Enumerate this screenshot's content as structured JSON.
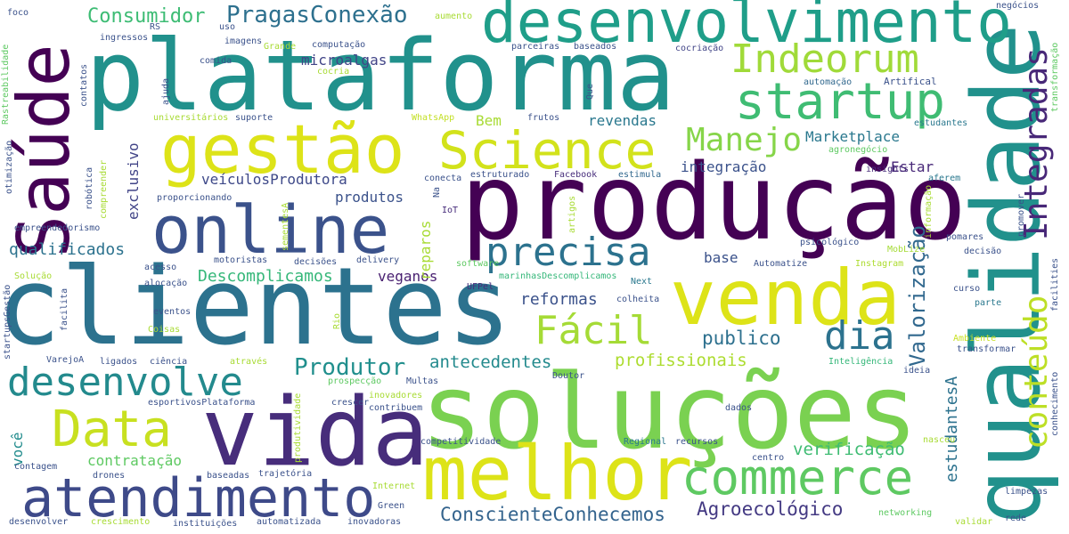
{
  "words": [
    {
      "text": "produção",
      "color": "#440154"
    },
    {
      "text": "soluções",
      "color": "#7ad151"
    },
    {
      "text": "plataforma",
      "color": "#21918c"
    },
    {
      "text": "clientes",
      "color": "#2c728e"
    },
    {
      "text": "qualidade",
      "color": "#21918c"
    },
    {
      "text": "vida",
      "color": "#472d7b"
    },
    {
      "text": "venda",
      "color": "#dde318"
    },
    {
      "text": "desenvolvimento",
      "color": "#1f9e89"
    },
    {
      "text": "online",
      "color": "#3b528b"
    },
    {
      "text": "Saúde",
      "color": "#440154"
    },
    {
      "text": "gestão",
      "color": "#dde318"
    },
    {
      "text": "melhor",
      "color": "#dde318"
    },
    {
      "text": "Science",
      "color": "#d2e21b"
    },
    {
      "text": "commerce",
      "color": "#5ec962"
    },
    {
      "text": "atendimento",
      "color": "#3e4a89"
    },
    {
      "text": "startup",
      "color": "#3fbc73"
    },
    {
      "text": "Data",
      "color": "#c8e020"
    },
    {
      "text": "desenvolve",
      "color": "#238a8d"
    },
    {
      "text": "precisa",
      "color": "#2c728e"
    },
    {
      "text": "Indeorum",
      "color": "#a0da39"
    },
    {
      "text": "Fácil",
      "color": "#a5db36"
    },
    {
      "text": "dia",
      "color": "#2c728e"
    },
    {
      "text": "Integradas",
      "color": "#482878"
    },
    {
      "text": "conteúdo",
      "color": "#bddf26"
    },
    {
      "text": "Manejo",
      "color": "#86d549"
    },
    {
      "text": "Valorização",
      "color": "#31688e"
    },
    {
      "text": "Produtor",
      "color": "#218f8d"
    },
    {
      "text": "PragasConexão",
      "color": "#2d708e"
    },
    {
      "text": "Consumidor",
      "color": "#3dbc74"
    },
    {
      "text": "ConscienteConhecemos",
      "color": "#33638d"
    },
    {
      "text": "Agroecológico",
      "color": "#443a83"
    },
    {
      "text": "publico",
      "color": "#2d708e"
    },
    {
      "text": "estudantesA",
      "color": "#2c728e"
    },
    {
      "text": "antecedentes",
      "color": "#238a8d"
    },
    {
      "text": "profissionais",
      "color": "#addc30"
    },
    {
      "text": "verificação",
      "color": "#3fbc73"
    },
    {
      "text": "qualificados",
      "color": "#2c728e"
    },
    {
      "text": "Descomplicamos",
      "color": "#35b779"
    },
    {
      "text": "reformas",
      "color": "#3b528b"
    },
    {
      "text": "veganos",
      "color": "#481f70"
    },
    {
      "text": "Marketplace",
      "color": "#2a788e"
    },
    {
      "text": "integração",
      "color": "#3b528b"
    },
    {
      "text": "revendas",
      "color": "#2a788e"
    },
    {
      "text": "Estar",
      "color": "#482878"
    },
    {
      "text": "veículosProdutora",
      "color": "#3e4989"
    },
    {
      "text": "produtos",
      "color": "#3b528b"
    },
    {
      "text": "exclusivo",
      "color": "#414487"
    },
    {
      "text": "contratação",
      "color": "#5ec962"
    },
    {
      "text": "você",
      "color": "#228c8d"
    },
    {
      "text": "reparos",
      "color": "#a8db34"
    },
    {
      "text": "microalgas",
      "color": "#414487"
    },
    {
      "text": "Bem",
      "color": "#a8db34"
    },
    {
      "text": "base",
      "color": "#3b528b"
    },
    {
      "text": "Inteligência",
      "color": "#35b779"
    },
    {
      "text": "Artifical",
      "color": "#3b528b"
    },
    {
      "text": "automação",
      "color": "#31688e"
    },
    {
      "text": "Marketplace",
      "color": "#2a788e"
    },
    {
      "text": "cocriação",
      "color": "#414487"
    },
    {
      "text": "baseados",
      "color": "#3b528b"
    },
    {
      "text": "parceiras",
      "color": "#3b528b"
    },
    {
      "text": "Facebook",
      "color": "#472d7b"
    },
    {
      "text": "estimula",
      "color": "#31688e"
    },
    {
      "text": "estruturado",
      "color": "#3b528b"
    },
    {
      "text": "conecta",
      "color": "#3b528b"
    },
    {
      "text": "IoT",
      "color": "#472d7b"
    },
    {
      "text": "WhatsApp",
      "color": "#c2df23"
    },
    {
      "text": "frutos",
      "color": "#3b528b"
    },
    {
      "text": "insights",
      "color": "#472d7b"
    },
    {
      "text": "aferem",
      "color": "#2a788e"
    },
    {
      "text": "estudantes",
      "color": "#2a788e"
    },
    {
      "text": "agronegócio",
      "color": "#5ec962"
    },
    {
      "text": "psicológico",
      "color": "#3b528b"
    },
    {
      "text": "MobLize",
      "color": "#a5db36"
    },
    {
      "text": "pomares",
      "color": "#3b528b"
    },
    {
      "text": "decisão",
      "color": "#3b528b"
    },
    {
      "text": "Automatize",
      "color": "#3b528b"
    },
    {
      "text": "Instagram",
      "color": "#addc30"
    },
    {
      "text": "curso",
      "color": "#3b528b"
    },
    {
      "text": "parte",
      "color": "#2a788e"
    },
    {
      "text": "Ambiente",
      "color": "#c8e020"
    },
    {
      "text": "transformar",
      "color": "#3b528b"
    },
    {
      "text": "ideia",
      "color": "#3b528b"
    },
    {
      "text": "acesso",
      "color": "#3b528b"
    },
    {
      "text": "alocação",
      "color": "#3b528b"
    },
    {
      "text": "motoristas",
      "color": "#3b528b"
    },
    {
      "text": "decisões",
      "color": "#3b528b"
    },
    {
      "text": "delivery",
      "color": "#3b528b"
    },
    {
      "text": "software",
      "color": "#5ec962"
    },
    {
      "text": "marinhasDescomplicamos",
      "color": "#35b779"
    },
    {
      "text": "UFPel",
      "color": "#472d7b"
    },
    {
      "text": "Next",
      "color": "#2a788e"
    },
    {
      "text": "colheita",
      "color": "#3b528b"
    },
    {
      "text": "eventos",
      "color": "#3b528b"
    },
    {
      "text": "Coisas",
      "color": "#a8db34"
    },
    {
      "text": "ligados",
      "color": "#3b528b"
    },
    {
      "text": "ciência",
      "color": "#3b528b"
    },
    {
      "text": "através",
      "color": "#a8db34"
    },
    {
      "text": "Doutor",
      "color": "#3b528b"
    },
    {
      "text": "Multas",
      "color": "#3b528b"
    },
    {
      "text": "prospecção",
      "color": "#5ec962"
    },
    {
      "text": "inovadores",
      "color": "#a8db34"
    },
    {
      "text": "contribuem",
      "color": "#3b528b"
    },
    {
      "text": "crescer",
      "color": "#3b528b"
    },
    {
      "text": "esportivosPlataforma",
      "color": "#3b528b"
    },
    {
      "text": "dados",
      "color": "#3b528b"
    },
    {
      "text": "competitividade",
      "color": "#3b528b"
    },
    {
      "text": "Regional",
      "color": "#2a788e"
    },
    {
      "text": "recursos",
      "color": "#3b528b"
    },
    {
      "text": "nasceu",
      "color": "#a8db34"
    },
    {
      "text": "centro",
      "color": "#3b528b"
    },
    {
      "text": "contagem",
      "color": "#3b528b"
    },
    {
      "text": "drones",
      "color": "#3b528b"
    },
    {
      "text": "baseadas",
      "color": "#3b528b"
    },
    {
      "text": "trajetória",
      "color": "#3b528b"
    },
    {
      "text": "Internet",
      "color": "#a8db34"
    },
    {
      "text": "Green",
      "color": "#3b528b"
    },
    {
      "text": "desenvolver",
      "color": "#3b528b"
    },
    {
      "text": "crescimento",
      "color": "#a8db34"
    },
    {
      "text": "instituições",
      "color": "#3b528b"
    },
    {
      "text": "automatizada",
      "color": "#3b528b"
    },
    {
      "text": "inovadoras",
      "color": "#3b528b"
    },
    {
      "text": "networking",
      "color": "#5ec962"
    },
    {
      "text": "validar",
      "color": "#a8db34"
    },
    {
      "text": "rede",
      "color": "#3b528b"
    },
    {
      "text": "limpezas",
      "color": "#3b528b"
    },
    {
      "text": "VarejoA",
      "color": "#3b528b"
    },
    {
      "text": "Solução",
      "color": "#a8db34"
    },
    {
      "text": "proporcionando",
      "color": "#3b528b"
    },
    {
      "text": "empreendedorismo",
      "color": "#3b528b"
    },
    {
      "text": "foco",
      "color": "#3b528b"
    },
    {
      "text": "aumento",
      "color": "#a8db34"
    },
    {
      "text": "negócios",
      "color": "#3b528b"
    },
    {
      "text": "ingressos",
      "color": "#3b528b"
    },
    {
      "text": "RS",
      "color": "#3b528b"
    },
    {
      "text": "uso",
      "color": "#3b528b"
    },
    {
      "text": "imagens",
      "color": "#3b528b"
    },
    {
      "text": "Grande",
      "color": "#a8db34"
    },
    {
      "text": "computação",
      "color": "#3b528b"
    },
    {
      "text": "comida",
      "color": "#3b528b"
    },
    {
      "text": "cocria",
      "color": "#a8db34"
    },
    {
      "text": "universitários",
      "color": "#a8db34"
    },
    {
      "text": "suporte",
      "color": "#3b528b"
    },
    {
      "text": "Que",
      "color": "#3b528b"
    },
    {
      "text": "Rastreabilidade",
      "color": "#5ec962"
    },
    {
      "text": "contatos",
      "color": "#3b528b"
    },
    {
      "text": "ajuda",
      "color": "#3b528b"
    },
    {
      "text": "otimização",
      "color": "#3b528b"
    },
    {
      "text": "robótica",
      "color": "#3b528b"
    },
    {
      "text": "compreender",
      "color": "#a8db34"
    },
    {
      "text": "Na",
      "color": "#3b528b"
    },
    {
      "text": "artigos",
      "color": "#a8db34"
    },
    {
      "text": "sementesA",
      "color": "#a8db34"
    },
    {
      "text": "Rio",
      "color": "#a8db34"
    },
    {
      "text": "produtividade",
      "color": "#a8db34"
    },
    {
      "text": "facilita",
      "color": "#3b528b"
    },
    {
      "text": "startupsGestão",
      "color": "#3b528b"
    },
    {
      "text": "transformação",
      "color": "#5ec962"
    },
    {
      "text": "informação",
      "color": "#a8db34"
    },
    {
      "text": "promover",
      "color": "#3b528b"
    },
    {
      "text": "facilities",
      "color": "#3b528b"
    },
    {
      "text": "conhecimento",
      "color": "#3b528b"
    }
  ]
}
